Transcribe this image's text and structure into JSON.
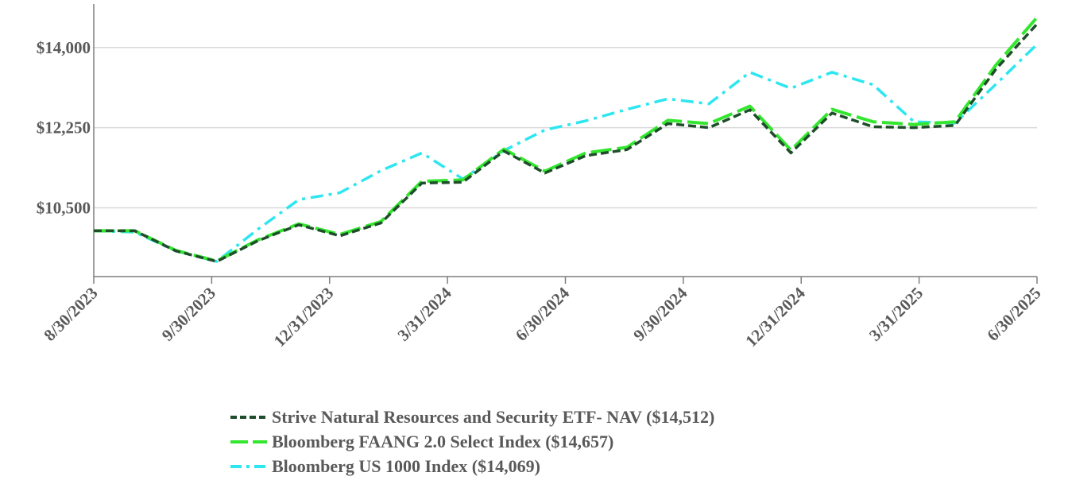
{
  "chart_data": {
    "type": "line",
    "title": "",
    "xlabel": "",
    "ylabel": "",
    "ylim": [
      9000,
      14950
    ],
    "yticks": [
      10500,
      12250,
      14000
    ],
    "ytick_labels": [
      "$10,500",
      "$12,250",
      "$14,000"
    ],
    "xtick_labels": [
      "8/30/2023",
      "9/30/2023",
      "12/31/2023",
      "3/31/2024",
      "6/30/2024",
      "9/30/2024",
      "12/31/2024",
      "3/31/2025",
      "6/30/2025"
    ],
    "grid": "horizontal",
    "legend_position": "bottom",
    "x": [
      "8/30/2023",
      "8/31/2023",
      "9/30/2023",
      "10/31/2023",
      "11/30/2023",
      "12/31/2023",
      "1/31/2024",
      "2/29/2024",
      "3/31/2024",
      "4/30/2024",
      "5/31/2024",
      "6/30/2024",
      "7/31/2024",
      "8/31/2024",
      "9/30/2024",
      "10/31/2024",
      "11/30/2024",
      "12/31/2024",
      "1/31/2025",
      "2/28/2025",
      "3/31/2025",
      "4/30/2025",
      "5/31/2025",
      "6/30/2025"
    ],
    "series": [
      {
        "name": "Strive Natural Resources and Security ETF- NAV ($14,512)",
        "color": "#1f4d2a",
        "style": "dashed",
        "values": [
          10000,
          10000,
          9560,
          9330,
          9780,
          10130,
          9890,
          10170,
          11040,
          11060,
          11740,
          11260,
          11640,
          11770,
          12340,
          12250,
          12640,
          11700,
          12570,
          12270,
          12250,
          12300,
          13530,
          14512
        ]
      },
      {
        "name": "Bloomberg FAANG 2.0 Select Index ($14,657)",
        "color": "#33e62e",
        "style": "long-dash",
        "values": [
          10000,
          10000,
          9570,
          9340,
          9800,
          10150,
          9920,
          10200,
          11080,
          11110,
          11780,
          11300,
          11700,
          11820,
          12410,
          12340,
          12720,
          11760,
          12650,
          12380,
          12320,
          12380,
          13620,
          14657
        ]
      },
      {
        "name": "Bloomberg US 1000 Index ($14,069)",
        "color": "#2ee6f0",
        "style": "dash-dot",
        "values": [
          10000,
          9970,
          9560,
          9330,
          10030,
          10680,
          10830,
          11310,
          11700,
          11130,
          11750,
          12200,
          12400,
          12650,
          12880,
          12770,
          13460,
          13110,
          13460,
          13190,
          12380,
          12350,
          13200,
          14069
        ]
      }
    ]
  }
}
